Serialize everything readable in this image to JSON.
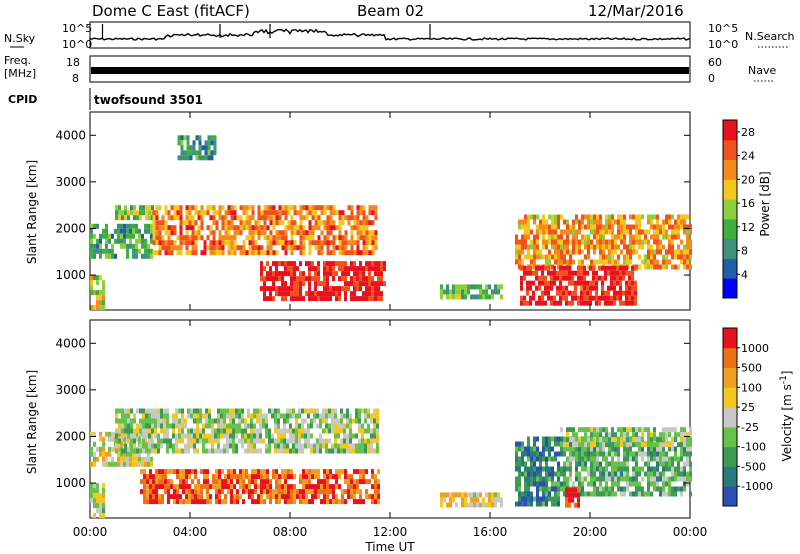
{
  "header": {
    "station": "Dome C East (fitACF)",
    "beam": "Beam 02",
    "date": "12/Mar/2016"
  },
  "top_panels": {
    "nsky_label": "N.Sky",
    "nsky_ticks": [
      "10^5",
      "10^0"
    ],
    "nsearch_label": "N.Search",
    "nsearch_ticks": [
      "10^5",
      "10^0"
    ],
    "freq_label_1": "Freq.",
    "freq_label_2": "[MHz]",
    "freq_ticks": [
      "18",
      "8"
    ],
    "nave_label": "Nave",
    "nave_ticks": [
      "60",
      "0"
    ],
    "cpid_label": "CPID",
    "cpid_value": "twofsound 3501"
  },
  "chart_data": [
    {
      "type": "heatmap",
      "name": "power",
      "xlabel": "",
      "ylabel": "Slant Range [km]",
      "x_range": [
        0,
        24
      ],
      "ylim": [
        250,
        4500
      ],
      "y_ticks": [
        "1000",
        "2000",
        "3000",
        "4000"
      ],
      "colorbar": {
        "label": "Power [dB]",
        "ticks": [
          "28",
          "24",
          "20",
          "16",
          "12",
          "8",
          "4"
        ],
        "tick_values": [
          28,
          24,
          20,
          16,
          12,
          8,
          4
        ],
        "range": [
          0,
          30
        ],
        "colors": [
          "#0000ff",
          "#1f5fa8",
          "#3e8f7c",
          "#3fae3f",
          "#8ccf3a",
          "#f2c81e",
          "#f28a1e",
          "#f0521e",
          "#e8121e"
        ]
      },
      "regions": [
        {
          "t0": 0.0,
          "t1": 0.6,
          "r0": 300,
          "r1": 1000,
          "level": 0.55
        },
        {
          "t0": 0.0,
          "t1": 2.5,
          "r0": 1400,
          "r1": 2100,
          "level": 0.35
        },
        {
          "t0": 1.0,
          "t1": 2.5,
          "r0": 2200,
          "r1": 2500,
          "level": 0.45
        },
        {
          "t0": 2.5,
          "t1": 11.5,
          "r0": 1500,
          "r1": 2500,
          "level": 0.75
        },
        {
          "t0": 6.8,
          "t1": 11.8,
          "r0": 500,
          "r1": 1300,
          "level": 0.95
        },
        {
          "t0": 3.5,
          "t1": 5.0,
          "r0": 3500,
          "r1": 4000,
          "level": 0.3
        },
        {
          "t0": 17.0,
          "t1": 24.0,
          "r0": 1200,
          "r1": 2300,
          "level": 0.7
        },
        {
          "t0": 17.2,
          "t1": 21.8,
          "r0": 400,
          "r1": 1200,
          "level": 0.95
        },
        {
          "t0": 14.0,
          "t1": 16.5,
          "r0": 500,
          "r1": 800,
          "level": 0.4
        }
      ]
    },
    {
      "type": "heatmap",
      "name": "velocity",
      "xlabel": "Time UT",
      "ylabel": "Slant Range [km]",
      "x_range": [
        0,
        24
      ],
      "x_ticks": [
        "00:00",
        "04:00",
        "08:00",
        "12:00",
        "16:00",
        "20:00",
        "00:00"
      ],
      "ylim": [
        250,
        4500
      ],
      "y_ticks": [
        "1000",
        "2000",
        "3000",
        "4000"
      ],
      "colorbar": {
        "label": "Velocity [m s^-1]",
        "ticks": [
          "1000",
          "500",
          "100",
          "25",
          "-25",
          "-100",
          "-500",
          "-1000"
        ],
        "colors": [
          "#2a4fb5",
          "#2a7a7a",
          "#3c9a55",
          "#66c24a",
          "#c8c8c8",
          "#f2c81e",
          "#f0a020",
          "#f07018",
          "#e8121e"
        ]
      },
      "regions": [
        {
          "t0": 0.0,
          "t1": 0.6,
          "r0": 300,
          "r1": 1000,
          "level": 0.5
        },
        {
          "t0": 0.0,
          "t1": 2.5,
          "r0": 1400,
          "r1": 2100,
          "level": 0.55
        },
        {
          "t0": 1.0,
          "t1": 11.5,
          "r0": 1700,
          "r1": 2600,
          "level": 0.45
        },
        {
          "t0": 2.0,
          "t1": 11.5,
          "r0": 550,
          "r1": 1300,
          "level": 0.85
        },
        {
          "t0": 17.0,
          "t1": 18.8,
          "r0": 600,
          "r1": 2000,
          "level": 0.2
        },
        {
          "t0": 18.8,
          "t1": 24.0,
          "r0": 800,
          "r1": 2000,
          "level": 0.35
        },
        {
          "t0": 18.8,
          "t1": 24.0,
          "r0": 1800,
          "r1": 2200,
          "level": 0.45
        },
        {
          "t0": 19.0,
          "t1": 19.6,
          "r0": 500,
          "r1": 900,
          "level": 0.95
        },
        {
          "t0": 14.0,
          "t1": 16.5,
          "r0": 500,
          "r1": 800,
          "level": 0.6
        }
      ]
    }
  ]
}
